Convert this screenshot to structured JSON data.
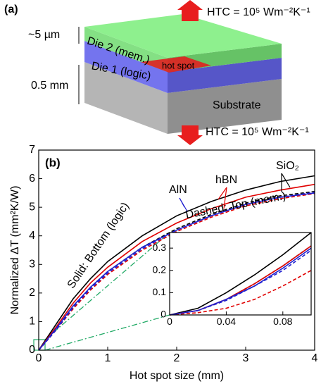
{
  "panel_a": {
    "label": "(a)",
    "thickness_die": "~5 µm",
    "thickness_substrate": "0.5 mm",
    "die2": "Die 2 (mem.)",
    "die1": "Die 1 (logic)",
    "hot_spot": "hot spot",
    "substrate": "Substrate",
    "htc_top": "HTC = 10⁵ Wm⁻²K⁻¹",
    "htc_bottom": "HTC = 10⁵ Wm⁻²K⁻¹"
  },
  "chart_data": [
    {
      "type": "line",
      "panel_label": "(b)",
      "x_label": "Hot spot size (mm)",
      "y_label": "Normalized ΔT (mm²K/W)",
      "annotations": [
        "Solid: Bottom (logic)",
        "Dashed: Top (mem.)"
      ],
      "x": [
        0,
        0.25,
        0.5,
        0.75,
        1,
        1.5,
        2,
        2.5,
        3,
        3.5,
        4
      ],
      "series": [
        {
          "name": "SiO₂",
          "color": "#000000",
          "values": [
            0,
            0.9,
            1.8,
            2.5,
            3.1,
            4.0,
            4.7,
            5.2,
            5.6,
            5.9,
            6.1
          ],
          "dashed_values": [
            0,
            0.7,
            1.5,
            2.2,
            2.75,
            3.6,
            4.25,
            4.75,
            5.15,
            5.4,
            5.55
          ]
        },
        {
          "name": "hBN",
          "color": "#e00000",
          "values": [
            0,
            0.8,
            1.65,
            2.35,
            2.9,
            3.8,
            4.45,
            4.95,
            5.35,
            5.6,
            5.8
          ],
          "dashed_values": [
            0,
            0.7,
            1.45,
            2.1,
            2.65,
            3.5,
            4.15,
            4.65,
            5.05,
            5.3,
            5.48
          ]
        },
        {
          "name": "AlN",
          "color": "#2020d0",
          "values": [
            0,
            0.75,
            1.55,
            2.2,
            2.75,
            3.6,
            4.2,
            4.7,
            5.1,
            5.35,
            5.5
          ],
          "dashed_values": [
            0,
            0.7,
            1.5,
            2.15,
            2.7,
            3.55,
            4.2,
            4.7,
            5.1,
            5.35,
            5.52
          ]
        }
      ],
      "xlim": [
        0,
        4
      ],
      "xticks": [
        0,
        1,
        2,
        3,
        4
      ],
      "ylim": [
        0,
        7
      ],
      "yticks": [
        0,
        1,
        2,
        3,
        4,
        5,
        6,
        7
      ]
    },
    {
      "type": "line",
      "x": [
        0,
        0.02,
        0.04,
        0.06,
        0.08,
        0.1
      ],
      "series": [
        {
          "color": "#000000",
          "values": [
            0,
            0.03,
            0.1,
            0.18,
            0.27,
            0.37
          ],
          "dashed_values": [
            0,
            0.02,
            0.07,
            0.14,
            0.22,
            0.31
          ]
        },
        {
          "color": "#e00000",
          "values": [
            0,
            0.02,
            0.07,
            0.14,
            0.22,
            0.31
          ],
          "dashed_values": [
            0,
            0.01,
            0.03,
            0.07,
            0.13,
            0.2
          ]
        },
        {
          "color": "#2020d0",
          "values": [
            0,
            0.02,
            0.07,
            0.13,
            0.21,
            0.3
          ],
          "dashed_values": [
            0,
            0.02,
            0.065,
            0.13,
            0.2,
            0.29
          ]
        }
      ],
      "xlim": [
        0,
        0.1
      ],
      "xticks": [
        0,
        0.04,
        0.08
      ],
      "ylim": [
        0,
        0.37
      ],
      "yticks": [
        0,
        0.1,
        0.2,
        0.3
      ]
    }
  ]
}
